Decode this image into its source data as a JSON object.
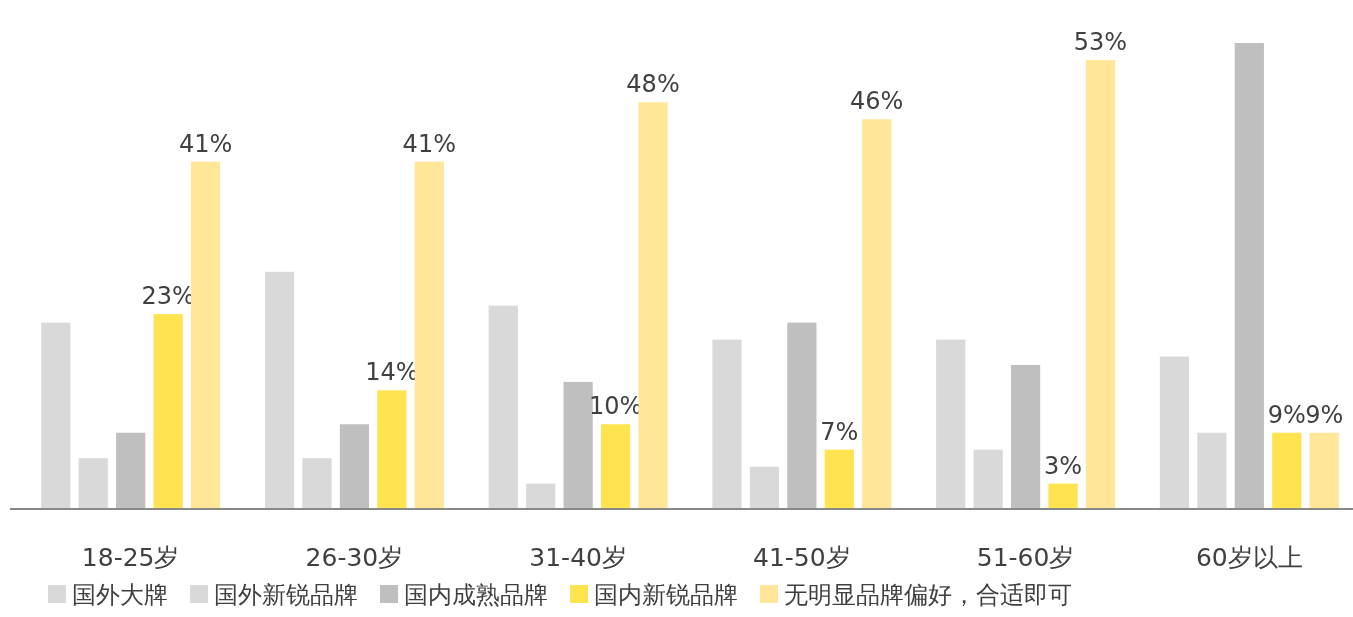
{
  "chart_data": {
    "type": "bar",
    "categories": [
      "18-25岁",
      "26-30岁",
      "31-40岁",
      "41-50岁",
      "51-60岁",
      "60岁以上"
    ],
    "series": [
      {
        "name": "国外大牌",
        "color": "#d9d9d9",
        "values": [
          22,
          28,
          24,
          20,
          20,
          18
        ]
      },
      {
        "name": "国外新锐品牌",
        "color": "#d9d9d9",
        "values": [
          6,
          6,
          3,
          5,
          7,
          9
        ]
      },
      {
        "name": "国内成熟品牌",
        "color": "#bfbfbf",
        "values": [
          9,
          10,
          15,
          22,
          17,
          55
        ]
      },
      {
        "name": "国内新锐品牌",
        "color": "#ffe34f",
        "values": [
          23,
          14,
          10,
          7,
          3,
          9
        ],
        "value_labels": [
          "23%",
          "14%",
          "10%",
          "7%",
          "3%",
          "9%"
        ]
      },
      {
        "name": "无明显品牌偏好，合适即可",
        "color": "#ffe699",
        "values": [
          41,
          41,
          48,
          46,
          53,
          9
        ],
        "value_labels": [
          "41%",
          "41%",
          "48%",
          "46%",
          "53%",
          "9%"
        ]
      }
    ],
    "legend": "bottom"
  }
}
